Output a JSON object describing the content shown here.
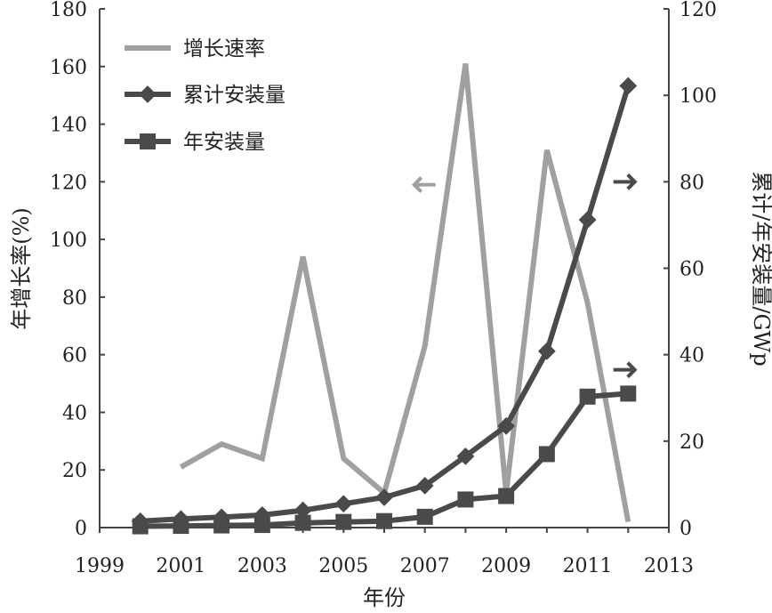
{
  "chart_data": {
    "type": "line",
    "x": [
      2000,
      2001,
      2002,
      2003,
      2004,
      2005,
      2006,
      2007,
      2008,
      2009,
      2010,
      2011,
      2012
    ],
    "xlim": [
      1999,
      2013
    ],
    "xticks": [
      "1999",
      "2001",
      "2003",
      "2005",
      "2007",
      "2009",
      "2011",
      "2013"
    ],
    "xlabel": "年份",
    "y_left": {
      "label": "年增长率(%)",
      "lim": [
        0,
        180
      ],
      "ticks": [
        "0",
        "20",
        "40",
        "60",
        "80",
        "100",
        "120",
        "140",
        "160",
        "180"
      ]
    },
    "y_right": {
      "label": "累计/年安装量/GWp",
      "lim": [
        0,
        120
      ],
      "ticks": [
        "0",
        "20",
        "40",
        "60",
        "80",
        "100",
        "120"
      ]
    },
    "grid": false,
    "legend_position": "top-left",
    "series": [
      {
        "name": "增长速率",
        "axis": "left",
        "color": "#a0a0a0",
        "marker": "none",
        "values": [
          null,
          21,
          29,
          24,
          94,
          24,
          12,
          63,
          161,
          12,
          131,
          78,
          2
        ]
      },
      {
        "name": "累计安装量",
        "axis": "right",
        "color": "#4a4a4a",
        "marker": "diamond",
        "values": [
          1.5,
          2.0,
          2.4,
          2.9,
          4.0,
          5.5,
          7.0,
          9.7,
          16.5,
          23.5,
          40.8,
          71.2,
          102.2
        ]
      },
      {
        "name": "年安装量",
        "axis": "right",
        "color": "#4a4a4a",
        "marker": "square",
        "values": [
          0.3,
          0.4,
          0.5,
          0.6,
          1.1,
          1.3,
          1.5,
          2.5,
          6.5,
          7.3,
          17.0,
          30.3,
          31.0
        ]
      }
    ],
    "arrows": [
      {
        "direction": "left",
        "axis": "left",
        "x": 2007,
        "y": 119
      },
      {
        "direction": "right",
        "axis": "right",
        "x": 2011.9,
        "y": 80
      },
      {
        "direction": "right",
        "axis": "right",
        "x": 2011.9,
        "y": 36.5
      }
    ]
  }
}
